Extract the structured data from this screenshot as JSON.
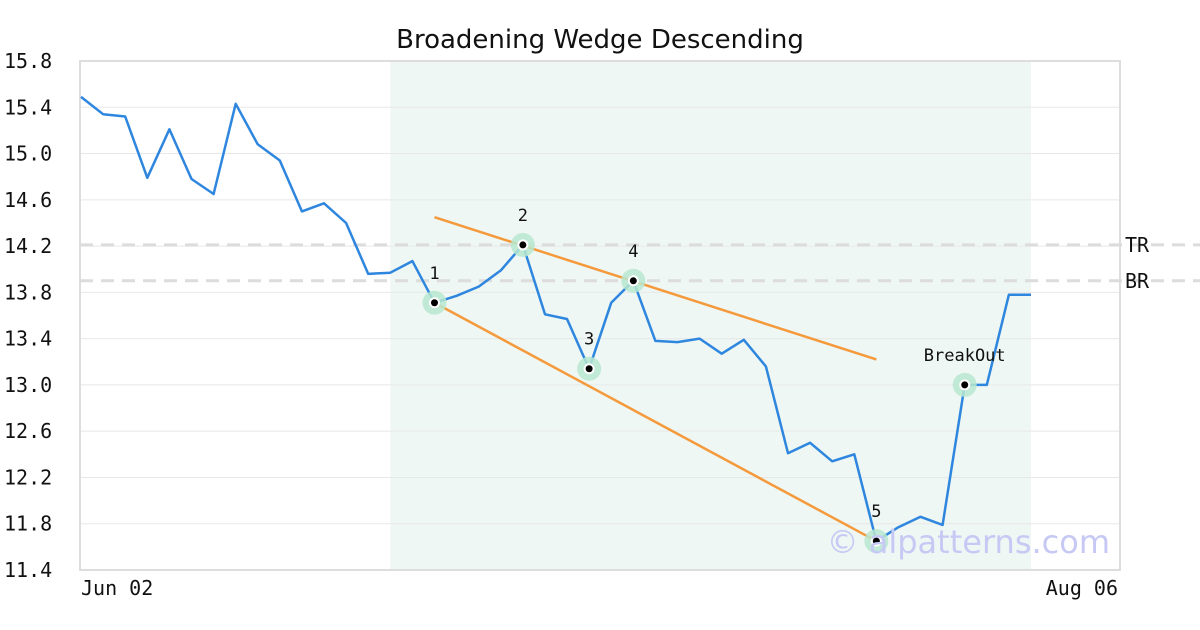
{
  "chart_data": {
    "type": "line",
    "title": "Broadening Wedge Descending",
    "xlabel": "",
    "ylabel": "",
    "x_tick_labels": [
      "Jun 02",
      "Aug 06"
    ],
    "y_ticks": [
      "11.4",
      "11.8",
      "12.2",
      "12.6",
      "13.0",
      "13.4",
      "13.8",
      "14.2",
      "14.6",
      "15.0",
      "15.4",
      "15.8"
    ],
    "ylim": [
      11.4,
      15.8
    ],
    "grid": "horizontal",
    "series": [
      {
        "color": "#2e86de",
        "values": [
          15.49,
          15.34,
          15.32,
          14.79,
          15.21,
          14.78,
          14.65,
          15.43,
          15.08,
          14.94,
          14.5,
          14.57,
          14.4,
          13.96,
          13.97,
          14.07,
          13.71,
          13.77,
          13.85,
          13.99,
          14.21,
          13.61,
          13.57,
          13.14,
          13.71,
          13.9,
          13.38,
          13.37,
          13.4,
          13.27,
          13.39,
          13.16,
          12.41,
          12.5,
          12.34,
          12.4,
          11.65,
          11.77,
          11.86,
          11.79,
          13.0,
          13.0,
          13.78,
          13.78
        ]
      }
    ],
    "highlight_region": {
      "from_index": 14,
      "to_index": 43,
      "color": "#eef7f3"
    },
    "reference_lines": [
      {
        "label": "TR",
        "value": 14.21
      },
      {
        "label": "BR",
        "value": 13.9
      }
    ],
    "trend_lines": [
      {
        "color": "#f59a3c",
        "from": {
          "index": 16,
          "value": 14.45
        },
        "to": {
          "index": 36,
          "value": 13.22
        }
      },
      {
        "color": "#f59a3c",
        "from": {
          "index": 16,
          "value": 13.71
        },
        "to": {
          "index": 36,
          "value": 11.65
        }
      }
    ],
    "pattern_points": [
      {
        "label": "1",
        "index": 16,
        "value": 13.71
      },
      {
        "label": "2",
        "index": 20,
        "value": 14.21
      },
      {
        "label": "3",
        "index": 23,
        "value": 13.14
      },
      {
        "label": "4",
        "index": 25,
        "value": 13.9
      },
      {
        "label": "5",
        "index": 36,
        "value": 11.65
      },
      {
        "label": "BreakOut",
        "index": 40,
        "value": 13.0
      }
    ],
    "watermark": "© alpatterns.com"
  }
}
